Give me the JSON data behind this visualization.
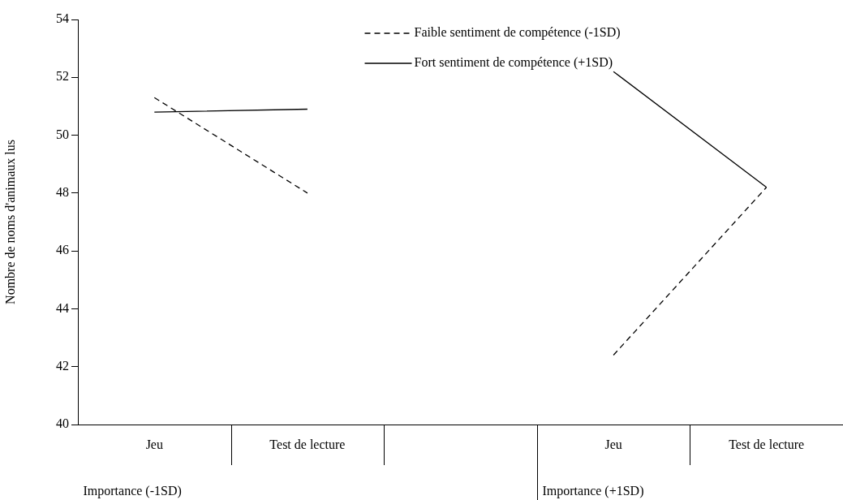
{
  "chart_data": {
    "type": "line",
    "ylabel": "Nombre de noms d'animaux lus",
    "categories": [
      "Jeu",
      "Test de lecture",
      null,
      "Jeu",
      "Test de lecture"
    ],
    "series": [
      {
        "name": "Faible sentiment de compétence (-1SD)",
        "color": "#000000",
        "line_style": "dashed",
        "values": [
          51.3,
          48.0,
          null,
          42.4,
          48.2
        ]
      },
      {
        "name": "Fort sentiment de compétence (+1SD)",
        "color": "#000000",
        "line_style": "solid",
        "values": [
          50.8,
          50.9,
          null,
          52.2,
          48.2
        ]
      }
    ],
    "ylim": [
      40,
      54
    ],
    "yticks": [
      40,
      42,
      44,
      46,
      48,
      50,
      52,
      54
    ],
    "grid": false,
    "legend": "top",
    "marker": "none",
    "annotations": [
      "Importance (-1SD)",
      "Importance (+1SD)"
    ]
  }
}
